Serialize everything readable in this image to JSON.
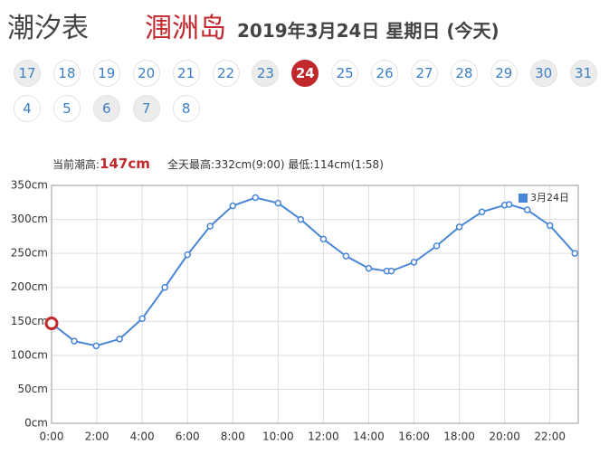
{
  "header": {
    "title": "潮汐表",
    "location": "涠洲岛",
    "date": "2019年3月24日 星期日 (今天)"
  },
  "days": [
    {
      "label": "17",
      "state": "weekend"
    },
    {
      "label": "18",
      "state": "normal"
    },
    {
      "label": "19",
      "state": "normal"
    },
    {
      "label": "20",
      "state": "normal"
    },
    {
      "label": "21",
      "state": "normal"
    },
    {
      "label": "22",
      "state": "normal"
    },
    {
      "label": "23",
      "state": "weekend"
    },
    {
      "label": "24",
      "state": "selected"
    },
    {
      "label": "25",
      "state": "normal"
    },
    {
      "label": "26",
      "state": "normal"
    },
    {
      "label": "27",
      "state": "normal"
    },
    {
      "label": "28",
      "state": "normal"
    },
    {
      "label": "29",
      "state": "normal"
    },
    {
      "label": "30",
      "state": "weekend"
    },
    {
      "label": "31",
      "state": "weekend"
    },
    {
      "label": "4",
      "state": "normal"
    },
    {
      "label": "5",
      "state": "normal"
    },
    {
      "label": "6",
      "state": "weekend"
    },
    {
      "label": "7",
      "state": "weekend"
    },
    {
      "label": "8",
      "state": "normal"
    }
  ],
  "info": {
    "current_label": "当前潮高:",
    "current_value": "147cm",
    "summary": "全天最高:332cm(9:00) 最低:114cm(1:58)"
  },
  "chart_data": {
    "type": "line",
    "x": [
      0,
      1,
      1.97,
      3,
      4,
      5,
      6,
      7,
      8,
      9,
      10,
      11,
      12,
      13,
      14,
      14.8,
      15,
      16,
      17,
      18,
      19,
      20,
      20.2,
      21,
      22,
      23.1
    ],
    "series": [
      {
        "name": "3月24日",
        "color": "#4a86d8",
        "values": [
          147,
          121,
          114,
          124,
          154,
          200,
          248,
          290,
          320,
          332,
          324,
          300,
          271,
          246,
          228,
          224,
          224,
          237,
          261,
          289,
          311,
          321,
          322,
          314,
          291,
          250
        ]
      }
    ],
    "highlight": {
      "x": 0,
      "value": 147,
      "color": "#c0282d"
    },
    "xlim": [
      0,
      23.25
    ],
    "xticks": [
      {
        "value": 0,
        "label": "0:00"
      },
      {
        "value": 2,
        "label": "2:00"
      },
      {
        "value": 4,
        "label": "4:00"
      },
      {
        "value": 6,
        "label": "6:00"
      },
      {
        "value": 8,
        "label": "8:00"
      },
      {
        "value": 10,
        "label": "10:00"
      },
      {
        "value": 12,
        "label": "12:00"
      },
      {
        "value": 14,
        "label": "14:00"
      },
      {
        "value": 16,
        "label": "16:00"
      },
      {
        "value": 18,
        "label": "18:00"
      },
      {
        "value": 20,
        "label": "20:00"
      },
      {
        "value": 22,
        "label": "22:00"
      }
    ],
    "ylim": [
      0,
      350
    ],
    "yticks": [
      {
        "value": 0,
        "label": "0cm"
      },
      {
        "value": 50,
        "label": "50cm"
      },
      {
        "value": 100,
        "label": "100cm"
      },
      {
        "value": 150,
        "label": "150cm"
      },
      {
        "value": 200,
        "label": "200cm"
      },
      {
        "value": 250,
        "label": "250cm"
      },
      {
        "value": 300,
        "label": "300cm"
      },
      {
        "value": 350,
        "label": "350cm"
      }
    ],
    "grid": true,
    "legend": "top-right"
  }
}
